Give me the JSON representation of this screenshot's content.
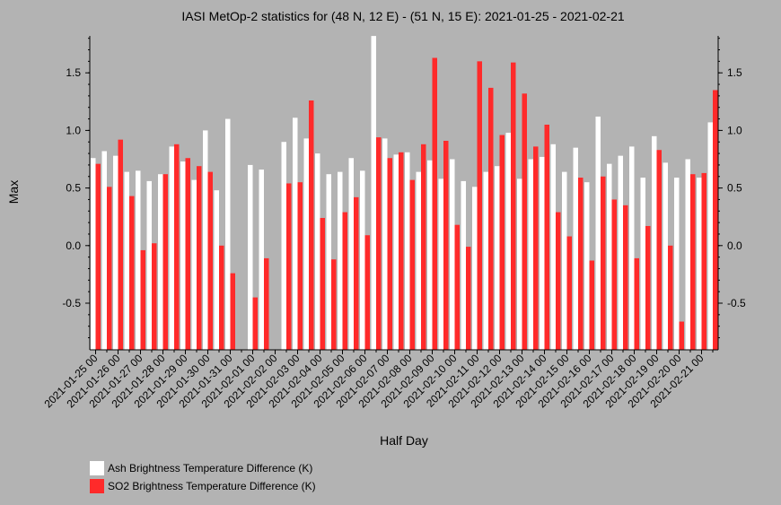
{
  "chart_data": {
    "type": "bar",
    "title": "IASI MetOp-2 statistics for (48 N, 12 E) - (51 N, 15 E): 2021-01-25 - 2021-02-21",
    "xlabel": "Half Day",
    "ylabel": "Max",
    "ylim": [
      -0.9,
      1.81
    ],
    "yticks": [
      -0.5,
      0.0,
      0.5,
      1.0,
      1.5
    ],
    "ytick_labels": [
      "-0.5",
      "0.0",
      "0.5",
      "1.0",
      "1.5"
    ],
    "xtick_labels": [
      "2021-01-25 00",
      "2021-01-26 00",
      "2021-01-27 00",
      "2021-01-28 00",
      "2021-01-29 00",
      "2021-01-30 00",
      "2021-01-31 00",
      "2021-02-01 00",
      "2021-02-02 00",
      "2021-02-03 00",
      "2021-02-04 00",
      "2021-02-05 00",
      "2021-02-06 00",
      "2021-02-07 00",
      "2021-02-08 00",
      "2021-02-09 00",
      "2021-02-10 00",
      "2021-02-11 00",
      "2021-02-12 00",
      "2021-02-13 00",
      "2021-02-14 00",
      "2021-02-15 00",
      "2021-02-16 00",
      "2021-02-17 00",
      "2021-02-18 00",
      "2021-02-19 00",
      "2021-02-20 00",
      "2021-02-21 00"
    ],
    "legend_position": "bottom-left",
    "series": [
      {
        "name": "Ash Brightness Temperature Difference (K)",
        "color": "#ffffff",
        "values": [
          0.76,
          0.82,
          0.78,
          0.64,
          0.65,
          0.56,
          0.62,
          0.86,
          0.73,
          0.57,
          1.0,
          0.48,
          1.1,
          null,
          0.7,
          0.66,
          null,
          0.9,
          1.11,
          0.93,
          0.8,
          0.62,
          0.64,
          0.76,
          0.65,
          1.82,
          0.93,
          0.79,
          0.81,
          0.64,
          0.74,
          0.58,
          0.75,
          0.56,
          0.51,
          0.64,
          0.69,
          0.98,
          0.58,
          0.75,
          0.77,
          0.88,
          0.64,
          0.85,
          0.55,
          1.12,
          0.71,
          0.78,
          0.86,
          0.59,
          0.95,
          0.72,
          0.59,
          0.75,
          0.59,
          1.07
        ]
      },
      {
        "name": "SO2 Brightness Temperature Difference (K)",
        "color": "#ff2a2a",
        "values": [
          0.71,
          0.51,
          0.92,
          0.43,
          -0.04,
          0.02,
          0.62,
          0.88,
          0.76,
          0.69,
          0.64,
          0.0,
          -0.24,
          null,
          -0.45,
          -0.11,
          null,
          0.54,
          0.55,
          1.26,
          0.24,
          -0.12,
          0.29,
          0.42,
          0.09,
          0.94,
          0.76,
          0.81,
          0.57,
          0.88,
          1.63,
          0.91,
          0.18,
          -0.01,
          1.6,
          1.37,
          0.96,
          1.59,
          1.32,
          0.86,
          1.05,
          0.29,
          0.08,
          0.59,
          -0.13,
          0.6,
          0.4,
          0.35,
          -0.11,
          0.17,
          0.83,
          0.0,
          -0.66,
          0.62,
          0.63,
          1.35
        ]
      }
    ]
  }
}
